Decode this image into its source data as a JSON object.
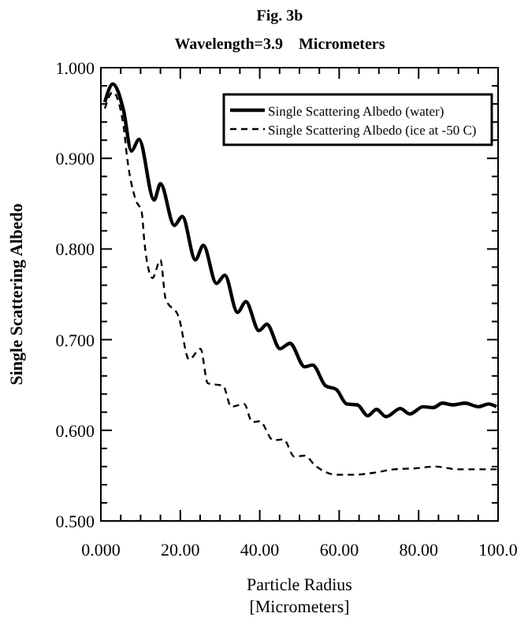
{
  "chart_data": {
    "type": "line",
    "title": "Fig. 3b",
    "subtitle": "Wavelength=3.9    Micrometers",
    "xlabel": "Particle Radius\n[Micrometers]",
    "ylabel": "Single Scattering Albedo",
    "xlim": [
      0,
      100
    ],
    "ylim": [
      0.5,
      1.0
    ],
    "xticks": [
      {
        "value": 0,
        "label": "0.000"
      },
      {
        "value": 5,
        "label": null
      },
      {
        "value": 10,
        "label": null
      },
      {
        "value": 15,
        "label": null
      },
      {
        "value": 20,
        "label": "20.00"
      },
      {
        "value": 25,
        "label": null
      },
      {
        "value": 30,
        "label": null
      },
      {
        "value": 35,
        "label": null
      },
      {
        "value": 40,
        "label": "40.00"
      },
      {
        "value": 45,
        "label": null
      },
      {
        "value": 50,
        "label": null
      },
      {
        "value": 55,
        "label": null
      },
      {
        "value": 60,
        "label": "60.00"
      },
      {
        "value": 65,
        "label": null
      },
      {
        "value": 70,
        "label": null
      },
      {
        "value": 75,
        "label": null
      },
      {
        "value": 80,
        "label": "80.00"
      },
      {
        "value": 85,
        "label": null
      },
      {
        "value": 90,
        "label": null
      },
      {
        "value": 95,
        "label": null
      },
      {
        "value": 100,
        "label": "100.0"
      }
    ],
    "yticks": [
      {
        "value": 0.5,
        "label": "0.500"
      },
      {
        "value": 0.52,
        "label": null
      },
      {
        "value": 0.54,
        "label": null
      },
      {
        "value": 0.56,
        "label": null
      },
      {
        "value": 0.58,
        "label": null
      },
      {
        "value": 0.6,
        "label": "0.600"
      },
      {
        "value": 0.62,
        "label": null
      },
      {
        "value": 0.64,
        "label": null
      },
      {
        "value": 0.66,
        "label": null
      },
      {
        "value": 0.68,
        "label": null
      },
      {
        "value": 0.7,
        "label": "0.700"
      },
      {
        "value": 0.72,
        "label": null
      },
      {
        "value": 0.74,
        "label": null
      },
      {
        "value": 0.76,
        "label": null
      },
      {
        "value": 0.78,
        "label": null
      },
      {
        "value": 0.8,
        "label": "0.800"
      },
      {
        "value": 0.82,
        "label": null
      },
      {
        "value": 0.84,
        "label": null
      },
      {
        "value": 0.86,
        "label": null
      },
      {
        "value": 0.88,
        "label": null
      },
      {
        "value": 0.9,
        "label": "0.900"
      },
      {
        "value": 0.92,
        "label": null
      },
      {
        "value": 0.94,
        "label": null
      },
      {
        "value": 0.96,
        "label": null
      },
      {
        "value": 0.98,
        "label": null
      },
      {
        "value": 1.0,
        "label": "1.000"
      }
    ],
    "grid": false,
    "legend": "top right",
    "marker": "none",
    "series": [
      {
        "name": "Single Scattering Albedo (water)",
        "color": "#000000",
        "line_style": "solid",
        "x": [
          1,
          3,
          5.7,
          7.7,
          9.6,
          13.4,
          15,
          18.5,
          20.5,
          23.8,
          25.8,
          29.1,
          31.2,
          34.4,
          36.5,
          39.8,
          41.8,
          45.1,
          47.6,
          51.3,
          53.3,
          56.6,
          59.3,
          61.9,
          64.6,
          67.2,
          69.4,
          71.8,
          75.4,
          77.8,
          81.1,
          83.7,
          86,
          88.6,
          91.7,
          95,
          97.6,
          99.6
        ],
        "values": [
          0.962,
          0.982,
          0.953,
          0.908,
          0.921,
          0.854,
          0.872,
          0.826,
          0.836,
          0.788,
          0.804,
          0.762,
          0.771,
          0.73,
          0.742,
          0.71,
          0.717,
          0.69,
          0.696,
          0.67,
          0.672,
          0.649,
          0.645,
          0.629,
          0.628,
          0.616,
          0.623,
          0.615,
          0.624,
          0.618,
          0.626,
          0.625,
          0.63,
          0.628,
          0.63,
          0.626,
          0.629,
          0.626
        ]
      },
      {
        "name": "Single Scattering Albedo (ice at -50 C)",
        "color": "#000000",
        "line_style": "dashed",
        "x": [
          1,
          3,
          5.7,
          6.6,
          8.7,
          10.3,
          11,
          13,
          15,
          16.3,
          19.6,
          22.2,
          25.1,
          26.9,
          30.8,
          32.8,
          36.1,
          38.1,
          40,
          43.4,
          46,
          48.7,
          51.3,
          54,
          59.3,
          63.3,
          68.5,
          73.8,
          79,
          84.3,
          89.6,
          100
        ],
        "values": [
          0.955,
          0.973,
          0.936,
          0.901,
          0.855,
          0.84,
          0.806,
          0.768,
          0.788,
          0.745,
          0.725,
          0.678,
          0.69,
          0.652,
          0.649,
          0.626,
          0.629,
          0.609,
          0.61,
          0.589,
          0.59,
          0.571,
          0.572,
          0.561,
          0.551,
          0.551,
          0.553,
          0.557,
          0.558,
          0.56,
          0.557,
          0.557
        ]
      }
    ]
  }
}
